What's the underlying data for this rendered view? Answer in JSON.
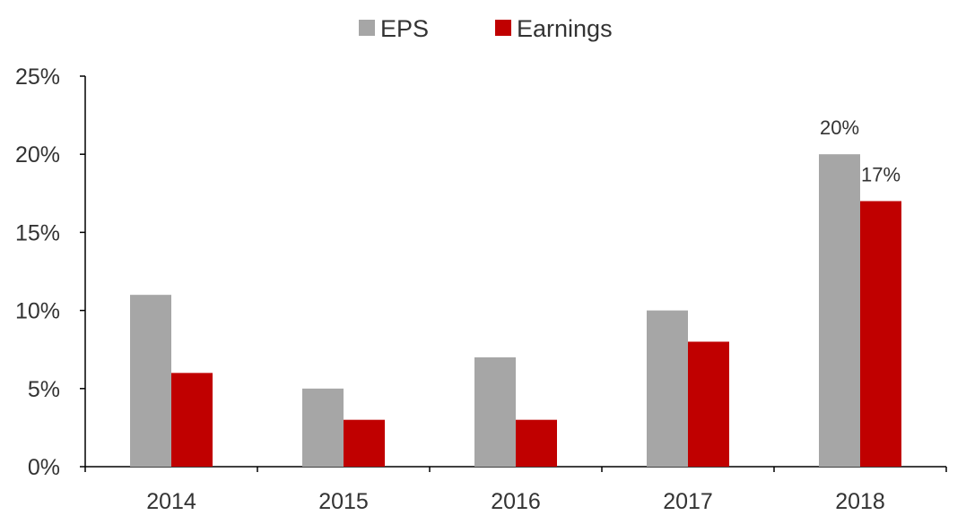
{
  "chart_data": {
    "type": "bar",
    "categories": [
      "2014",
      "2015",
      "2016",
      "2017",
      "2018"
    ],
    "series": [
      {
        "name": "EPS",
        "color": "#a6a6a6",
        "values": [
          11,
          5,
          7,
          10,
          20
        ]
      },
      {
        "name": "Earnings",
        "color": "#c00000",
        "values": [
          6,
          3,
          3,
          8,
          17
        ]
      }
    ],
    "ylim": [
      0,
      25
    ],
    "yticks": [
      0,
      5,
      10,
      15,
      20,
      25
    ],
    "ytick_labels": [
      "0%",
      "5%",
      "10%",
      "15%",
      "20%",
      "25%"
    ],
    "data_labels": [
      {
        "series": 0,
        "index": 4,
        "text": "20%"
      },
      {
        "series": 1,
        "index": 4,
        "text": "17%"
      }
    ],
    "legend_position": "top-center",
    "grid": false,
    "title": "",
    "xlabel": "",
    "ylabel": ""
  }
}
